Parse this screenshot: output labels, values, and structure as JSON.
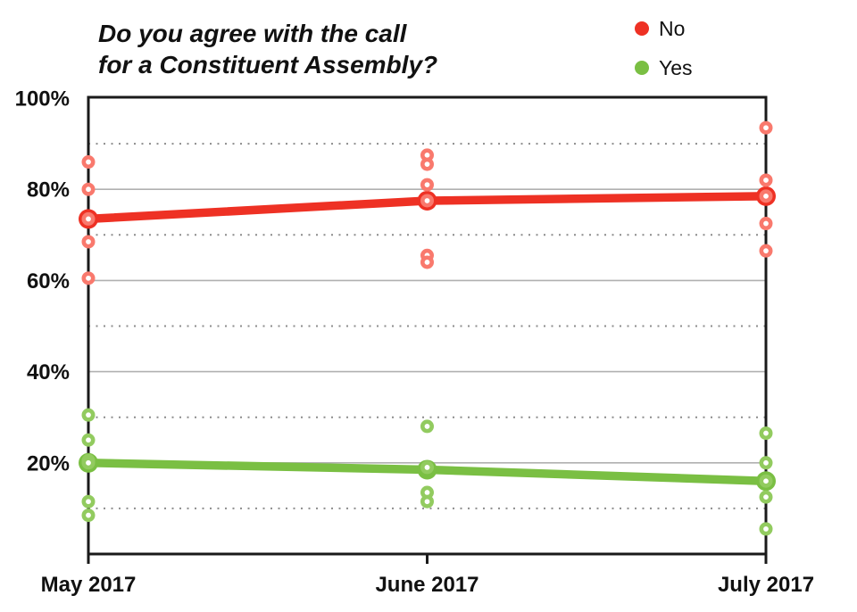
{
  "title": {
    "line1": "Do you agree with the call",
    "line2": "for a Constituent Assembly?"
  },
  "legend": [
    {
      "label": "No",
      "color": "#ee3124"
    },
    {
      "label": "Yes",
      "color": "#7abf43"
    }
  ],
  "chart_data": {
    "type": "line",
    "title": "Do you agree with the call for a Constituent Assembly?",
    "xlabel": "",
    "ylabel": "",
    "categories": [
      "May 2017",
      "June 2017",
      "July 2017"
    ],
    "ylim": [
      0,
      100
    ],
    "y_ticks": [
      {
        "value": 20,
        "label": "20%"
      },
      {
        "value": 40,
        "label": "40%"
      },
      {
        "value": 60,
        "label": "60%"
      },
      {
        "value": 80,
        "label": "80%"
      },
      {
        "value": 100,
        "label": "100%"
      }
    ],
    "y_solid_gridlines": [
      20,
      40,
      60,
      80
    ],
    "y_dotted_gridlines": [
      10,
      30,
      50,
      70,
      90
    ],
    "grid": true,
    "legend_position": "top-right",
    "series": [
      {
        "name": "No",
        "color": "#ee3124",
        "scatter_color": "#f9796d",
        "trend": [
          73.5,
          77.5,
          78.5
        ],
        "scatter": [
          [
            86,
            80,
            73.5,
            68.5,
            60.5
          ],
          [
            87.5,
            85.5,
            81,
            77.5,
            65.5,
            64
          ],
          [
            93.5,
            82,
            78.5,
            72.5,
            66.5
          ]
        ]
      },
      {
        "name": "Yes",
        "color": "#7abf43",
        "scatter_color": "#92cb5f",
        "trend": [
          20,
          18.5,
          16
        ],
        "scatter": [
          [
            30.5,
            25,
            20.5,
            20,
            11.5,
            8.5
          ],
          [
            28,
            19,
            13.5,
            11.5
          ],
          [
            26.5,
            20,
            16,
            12.5,
            5.5
          ]
        ]
      }
    ]
  }
}
